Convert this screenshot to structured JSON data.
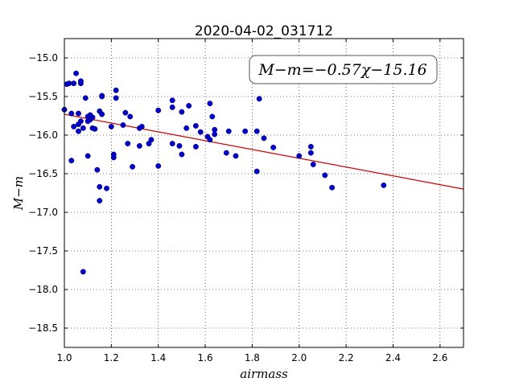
{
  "chart_data": {
    "type": "scatter",
    "title": "2020-04-02_031712",
    "xlabel": "airmass",
    "ylabel": "M−m",
    "xlim": [
      1.0,
      2.7
    ],
    "ylim": [
      -18.75,
      -14.75
    ],
    "y_inverted": true,
    "xticks": [
      1.0,
      1.2,
      1.4,
      1.6,
      1.8,
      2.0,
      2.2,
      2.4,
      2.6
    ],
    "xtick_labels": [
      "1.0",
      "1.2",
      "1.4",
      "1.6",
      "1.8",
      "2.0",
      "2.2",
      "2.4",
      "2.6"
    ],
    "yticks": [
      -15.0,
      -15.5,
      -16.0,
      -16.5,
      -17.0,
      -17.5,
      -18.0,
      -18.5
    ],
    "ytick_labels": [
      "−15.0",
      "−15.5",
      "−16.0",
      "−16.5",
      "−17.0",
      "−17.5",
      "−18.0",
      "−18.5"
    ],
    "grid": true,
    "annotation": "M−m=−0.57χ−15.16",
    "fit": {
      "slope": -0.57,
      "intercept": -15.16,
      "color": "#cc0000"
    },
    "point_color": "#0000cc",
    "points": [
      [
        1.0,
        -15.67
      ],
      [
        1.01,
        -15.34
      ],
      [
        1.02,
        -15.33
      ],
      [
        1.03,
        -15.72
      ],
      [
        1.03,
        -16.33
      ],
      [
        1.04,
        -15.89
      ],
      [
        1.04,
        -15.33
      ],
      [
        1.05,
        -15.2
      ],
      [
        1.06,
        -15.72
      ],
      [
        1.06,
        -15.86
      ],
      [
        1.06,
        -15.95
      ],
      [
        1.07,
        -15.33
      ],
      [
        1.07,
        -15.82
      ],
      [
        1.07,
        -15.3
      ],
      [
        1.08,
        -15.91
      ],
      [
        1.08,
        -17.77
      ],
      [
        1.09,
        -15.52
      ],
      [
        1.1,
        -15.76
      ],
      [
        1.1,
        -15.82
      ],
      [
        1.1,
        -16.27
      ],
      [
        1.11,
        -15.74
      ],
      [
        1.11,
        -15.8
      ],
      [
        1.12,
        -15.91
      ],
      [
        1.12,
        -15.77
      ],
      [
        1.13,
        -15.92
      ],
      [
        1.14,
        -16.45
      ],
      [
        1.15,
        -16.67
      ],
      [
        1.15,
        -16.85
      ],
      [
        1.15,
        -15.69
      ],
      [
        1.16,
        -15.49
      ],
      [
        1.16,
        -15.5
      ],
      [
        1.16,
        -15.73
      ],
      [
        1.18,
        -16.69
      ],
      [
        1.2,
        -15.89
      ],
      [
        1.21,
        -16.29
      ],
      [
        1.21,
        -16.25
      ],
      [
        1.22,
        -15.42
      ],
      [
        1.22,
        -15.52
      ],
      [
        1.25,
        -15.87
      ],
      [
        1.26,
        -15.71
      ],
      [
        1.27,
        -16.11
      ],
      [
        1.28,
        -15.76
      ],
      [
        1.29,
        -16.41
      ],
      [
        1.32,
        -15.91
      ],
      [
        1.32,
        -16.14
      ],
      [
        1.33,
        -15.89
      ],
      [
        1.36,
        -16.11
      ],
      [
        1.37,
        -16.06
      ],
      [
        1.4,
        -15.68
      ],
      [
        1.4,
        -16.4
      ],
      [
        1.46,
        -15.55
      ],
      [
        1.46,
        -15.64
      ],
      [
        1.46,
        -16.11
      ],
      [
        1.49,
        -16.14
      ],
      [
        1.5,
        -16.25
      ],
      [
        1.5,
        -15.7
      ],
      [
        1.52,
        -15.91
      ],
      [
        1.53,
        -15.62
      ],
      [
        1.56,
        -15.88
      ],
      [
        1.56,
        -16.15
      ],
      [
        1.58,
        -15.96
      ],
      [
        1.61,
        -16.02
      ],
      [
        1.62,
        -15.59
      ],
      [
        1.62,
        -16.06
      ],
      [
        1.63,
        -15.76
      ],
      [
        1.64,
        -15.93
      ],
      [
        1.64,
        -15.99
      ],
      [
        1.69,
        -16.23
      ],
      [
        1.7,
        -15.95
      ],
      [
        1.73,
        -16.27
      ],
      [
        1.77,
        -15.95
      ],
      [
        1.82,
        -16.47
      ],
      [
        1.82,
        -15.95
      ],
      [
        1.83,
        -15.53
      ],
      [
        1.85,
        -16.04
      ],
      [
        1.89,
        -16.16
      ],
      [
        2.0,
        -16.27
      ],
      [
        2.05,
        -16.15
      ],
      [
        2.05,
        -16.23
      ],
      [
        2.06,
        -16.38
      ],
      [
        2.11,
        -16.52
      ],
      [
        2.14,
        -16.68
      ],
      [
        2.36,
        -16.65
      ]
    ]
  }
}
